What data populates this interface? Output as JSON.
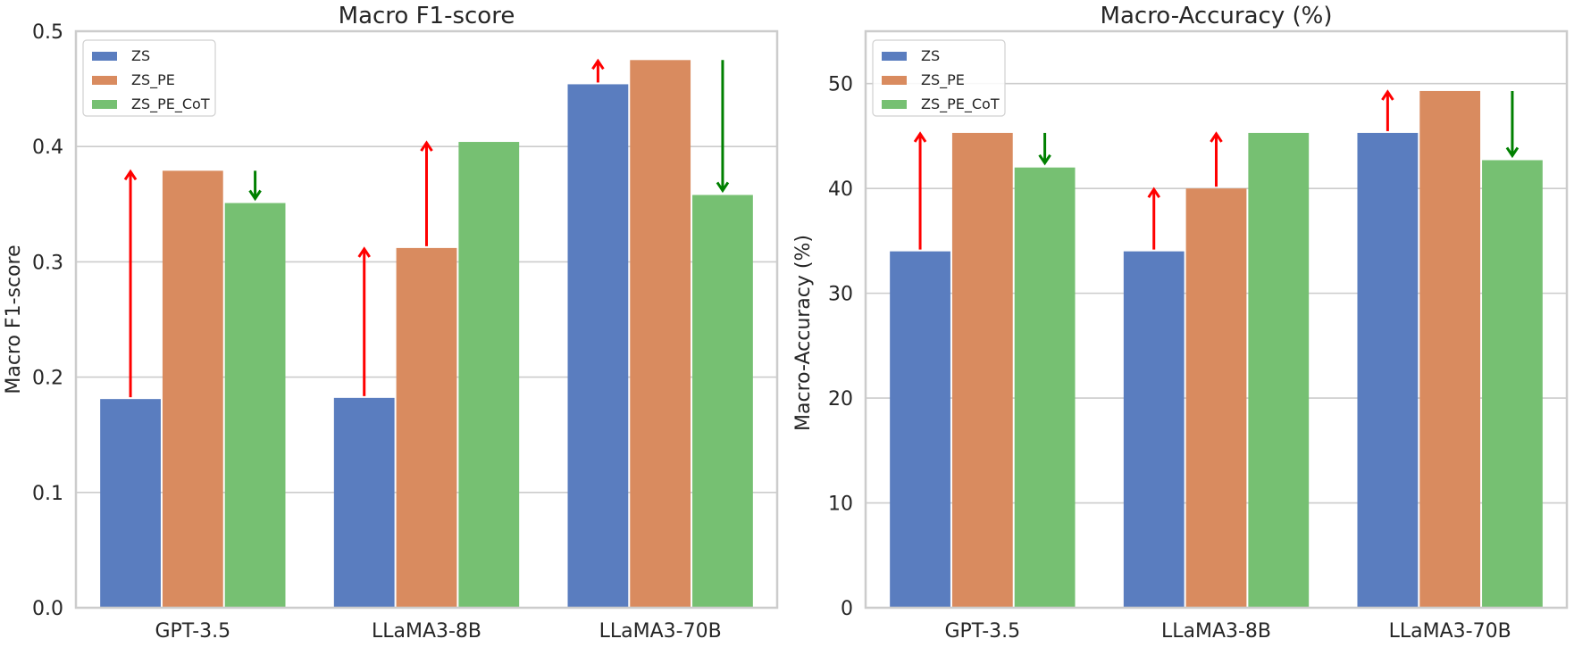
{
  "chart_data": [
    {
      "type": "bar",
      "title": "Macro F1-score",
      "xlabel": "",
      "ylabel": "Macro F1-score",
      "ylim": [
        0,
        0.5
      ],
      "yticks": [
        "0.0",
        "0.1",
        "0.2",
        "0.3",
        "0.4",
        "0.5"
      ],
      "categories": [
        "GPT-3.5",
        "LLaMA3-8B",
        "LLaMA3-70B"
      ],
      "grid": "horizontal",
      "legend_position": "top-left",
      "series": [
        {
          "name": "ZS",
          "color": "#5a7dbf",
          "values": [
            0.181,
            0.182,
            0.454
          ]
        },
        {
          "name": "ZS_PE",
          "color": "#d98b5f",
          "values": [
            0.379,
            0.312,
            0.475
          ]
        },
        {
          "name": "ZS_PE_CoT",
          "color": "#76c072",
          "values": [
            0.351,
            0.404,
            0.358
          ]
        }
      ],
      "annotations": [
        {
          "type": "arrow",
          "color": "#ff0000",
          "direction": "up",
          "category": "GPT-3.5",
          "series": "ZS",
          "from": 0.181,
          "to": 0.379
        },
        {
          "type": "arrow",
          "color": "#008000",
          "direction": "down",
          "category": "GPT-3.5",
          "series": "ZS_PE_CoT",
          "from": 0.379,
          "to": 0.351
        },
        {
          "type": "arrow",
          "color": "#ff0000",
          "direction": "up",
          "category": "LLaMA3-8B",
          "series": "ZS",
          "from": 0.182,
          "to": 0.312
        },
        {
          "type": "arrow",
          "color": "#ff0000",
          "direction": "up",
          "category": "LLaMA3-8B",
          "series": "ZS_PE",
          "from": 0.312,
          "to": 0.404
        },
        {
          "type": "arrow",
          "color": "#ff0000",
          "direction": "up",
          "category": "LLaMA3-70B",
          "series": "ZS",
          "from": 0.454,
          "to": 0.475
        },
        {
          "type": "arrow",
          "color": "#008000",
          "direction": "down",
          "category": "LLaMA3-70B",
          "series": "ZS_PE_CoT",
          "from": 0.475,
          "to": 0.358
        }
      ]
    },
    {
      "type": "bar",
      "title": "Macro-Accuracy (%)",
      "xlabel": "",
      "ylabel": "Macro-Accuracy (%)",
      "ylim": [
        0,
        55
      ],
      "yticks": [
        "0",
        "10",
        "20",
        "30",
        "40",
        "50"
      ],
      "categories": [
        "GPT-3.5",
        "LLaMA3-8B",
        "LLaMA3-70B"
      ],
      "grid": "horizontal",
      "legend_position": "top-left",
      "series": [
        {
          "name": "ZS",
          "color": "#5a7dbf",
          "values": [
            34.0,
            34.0,
            45.3
          ]
        },
        {
          "name": "ZS_PE",
          "color": "#d98b5f",
          "values": [
            45.3,
            40.0,
            49.3
          ]
        },
        {
          "name": "ZS_PE_CoT",
          "color": "#76c072",
          "values": [
            42.0,
            45.3,
            42.7
          ]
        }
      ],
      "annotations": [
        {
          "type": "arrow",
          "color": "#ff0000",
          "direction": "up",
          "category": "GPT-3.5",
          "series": "ZS",
          "from": 34.0,
          "to": 45.3
        },
        {
          "type": "arrow",
          "color": "#008000",
          "direction": "down",
          "category": "GPT-3.5",
          "series": "ZS_PE_CoT",
          "from": 45.3,
          "to": 42.0
        },
        {
          "type": "arrow",
          "color": "#ff0000",
          "direction": "up",
          "category": "LLaMA3-8B",
          "series": "ZS",
          "from": 34.0,
          "to": 40.0
        },
        {
          "type": "arrow",
          "color": "#ff0000",
          "direction": "up",
          "category": "LLaMA3-8B",
          "series": "ZS_PE",
          "from": 40.0,
          "to": 45.3
        },
        {
          "type": "arrow",
          "color": "#ff0000",
          "direction": "up",
          "category": "LLaMA3-70B",
          "series": "ZS",
          "from": 45.3,
          "to": 49.3
        },
        {
          "type": "arrow",
          "color": "#008000",
          "direction": "down",
          "category": "LLaMA3-70B",
          "series": "ZS_PE_CoT",
          "from": 49.3,
          "to": 42.7
        }
      ]
    }
  ]
}
